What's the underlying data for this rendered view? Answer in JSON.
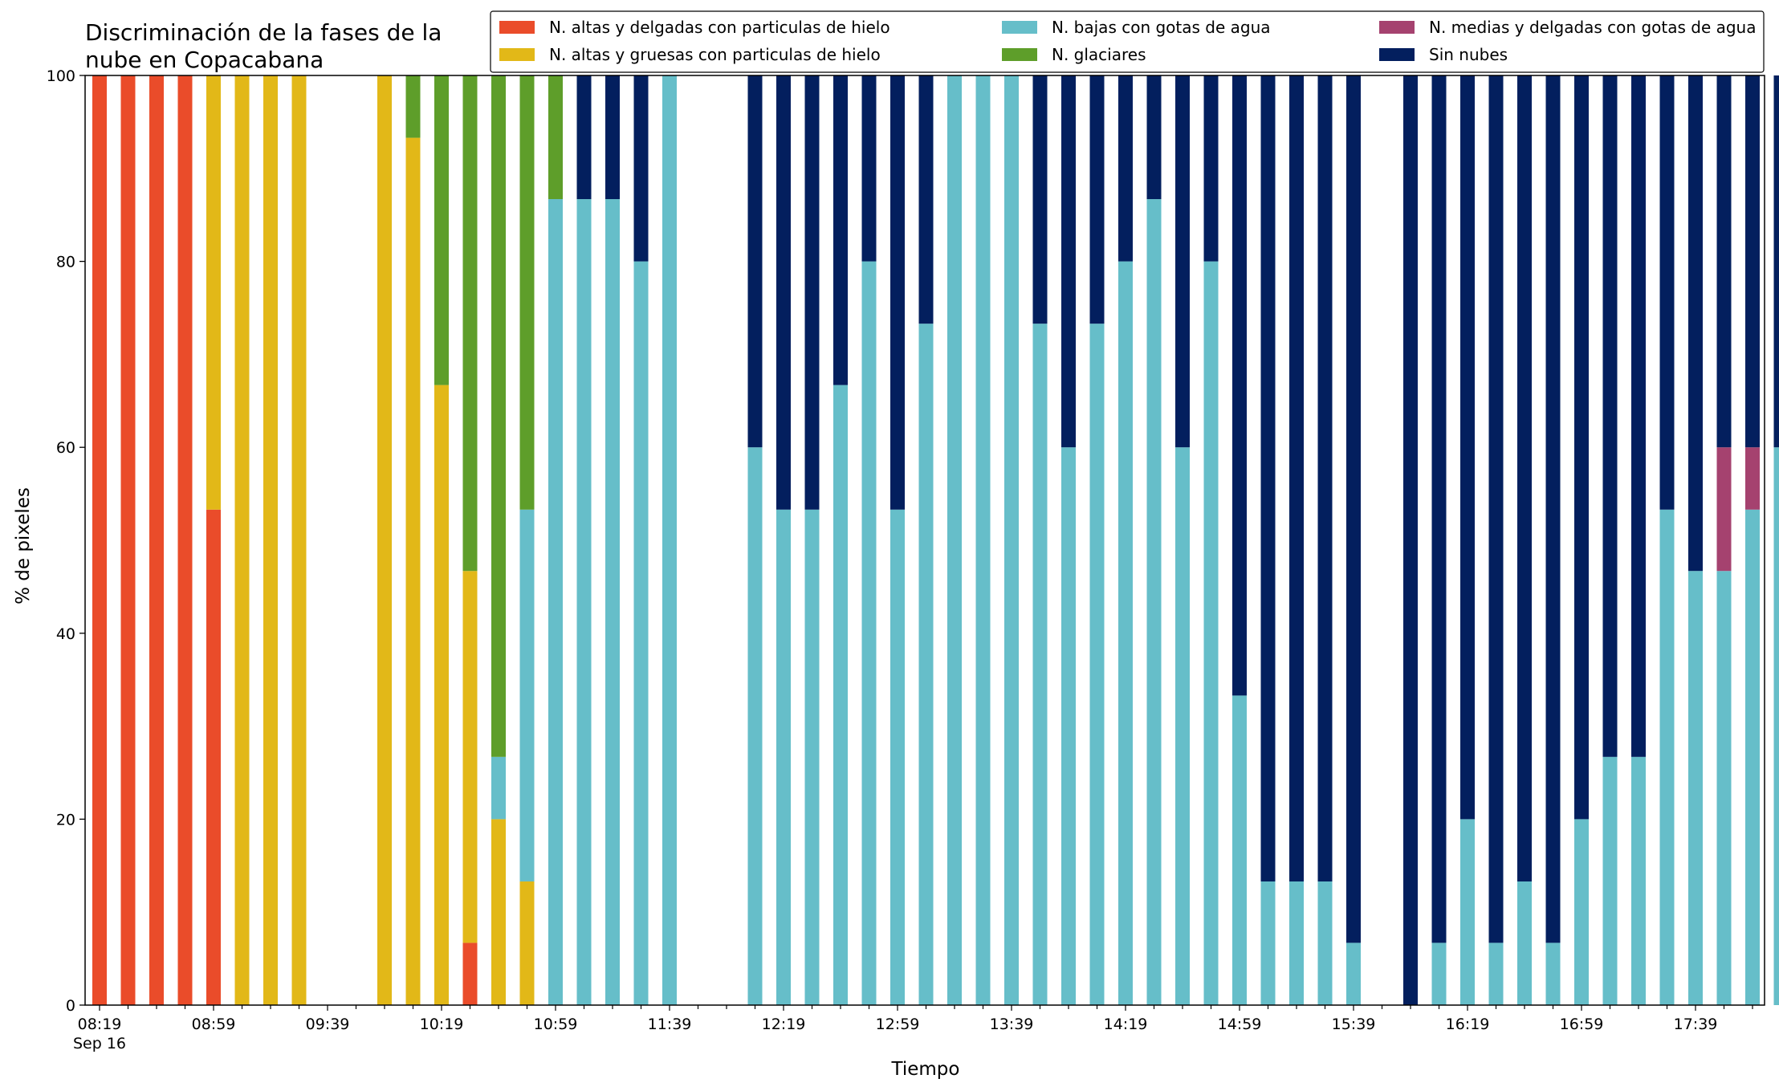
{
  "chart_data": {
    "type": "bar",
    "stacked": true,
    "title_lines": [
      "Discriminación de la fases de la",
      "nube en Copacabana"
    ],
    "xlabel": "Tiempo",
    "ylabel": "% de pixeles",
    "ylim": [
      0,
      100
    ],
    "yticks": [
      0,
      20,
      40,
      60,
      80,
      100
    ],
    "grid": false,
    "legend_position": "top-right",
    "x_start": "08:19",
    "x_step_minutes": 10,
    "slot_count": 59,
    "xtick_labels": [
      "08:19",
      "08:59",
      "09:39",
      "10:19",
      "10:59",
      "11:39",
      "12:19",
      "12:59",
      "13:39",
      "14:19",
      "14:59",
      "15:39",
      "16:19",
      "16:59",
      "17:39"
    ],
    "xtick_sublabel": "Sep 16",
    "series": [
      {
        "name": "N. altas y delgadas con particulas de hielo",
        "color": "#ea4c2a",
        "values": [
          100,
          100,
          100,
          100,
          53.3,
          0,
          0,
          0,
          0,
          0,
          0,
          0,
          0,
          6.7,
          0,
          0,
          0,
          0,
          0,
          0,
          0,
          0,
          0,
          0,
          0,
          0,
          0,
          0,
          0,
          0,
          0,
          0,
          0,
          0,
          0,
          0,
          0,
          0,
          0,
          0,
          0,
          0,
          0,
          0,
          0,
          0,
          0,
          0,
          0,
          0,
          0,
          0,
          0,
          0,
          0,
          0,
          0,
          0,
          0
        ]
      },
      {
        "name": "N. altas y gruesas con particulas de hielo",
        "color": "#e2b818",
        "values": [
          0,
          0,
          0,
          0,
          46.7,
          100,
          100,
          100,
          0,
          0,
          100,
          93.3,
          66.7,
          40,
          20,
          13.3,
          0,
          0,
          0,
          0,
          0,
          0,
          0,
          0,
          0,
          0,
          0,
          0,
          0,
          0,
          0,
          0,
          0,
          0,
          0,
          0,
          0,
          0,
          0,
          0,
          0,
          0,
          0,
          0,
          0,
          0,
          0,
          0,
          0,
          0,
          0,
          0,
          0,
          0,
          0,
          0,
          0,
          0,
          0
        ]
      },
      {
        "name": "N. bajas con gotas de agua",
        "color": "#66bec9",
        "values": [
          0,
          0,
          0,
          0,
          0,
          0,
          0,
          0,
          0,
          0,
          0,
          0,
          0,
          0,
          6.7,
          40,
          86.7,
          86.7,
          86.7,
          80,
          100,
          0,
          0,
          60,
          53.3,
          53.3,
          66.7,
          80,
          53.3,
          73.3,
          100,
          100,
          100,
          73.3,
          60,
          73.3,
          80,
          86.7,
          60,
          80,
          33.3,
          13.3,
          13.3,
          13.3,
          6.7,
          0,
          0,
          6.7,
          20,
          6.7,
          13.3,
          6.7,
          20,
          26.7,
          26.7,
          53.3,
          46.7,
          46.7,
          53.3
        ]
      },
      {
        "name": "N. glaciares",
        "color": "#5e9e2a",
        "values": [
          0,
          0,
          0,
          0,
          0,
          0,
          0,
          0,
          0,
          0,
          0,
          6.7,
          33.3,
          53.3,
          73.3,
          46.7,
          13.3,
          0,
          0,
          0,
          0,
          0,
          0,
          0,
          0,
          0,
          0,
          0,
          0,
          0,
          0,
          0,
          0,
          0,
          0,
          0,
          0,
          0,
          0,
          0,
          0,
          0,
          0,
          0,
          0,
          0,
          0,
          0,
          0,
          0,
          0,
          0,
          0,
          0,
          0,
          0,
          0,
          0,
          0
        ]
      },
      {
        "name": "N. medias y delgadas con gotas de agua",
        "color": "#a5426f",
        "values": [
          0,
          0,
          0,
          0,
          0,
          0,
          0,
          0,
          0,
          0,
          0,
          0,
          0,
          0,
          0,
          0,
          0,
          0,
          0,
          0,
          0,
          0,
          0,
          0,
          0,
          0,
          0,
          0,
          0,
          0,
          0,
          0,
          0,
          0,
          0,
          0,
          0,
          0,
          0,
          0,
          0,
          0,
          0,
          0,
          0,
          0,
          0,
          0,
          0,
          0,
          0,
          0,
          0,
          0,
          0,
          0,
          0,
          13.3,
          6.7
        ]
      },
      {
        "name": "Sin nubes",
        "color": "#031f5e",
        "values": [
          0,
          0,
          0,
          0,
          0,
          0,
          0,
          0,
          0,
          0,
          0,
          0,
          0,
          0,
          0,
          0,
          0,
          13.3,
          13.3,
          20,
          0,
          0,
          0,
          40,
          46.7,
          46.7,
          33.3,
          20,
          46.7,
          26.7,
          0,
          0,
          0,
          26.7,
          40,
          26.7,
          20,
          13.3,
          40,
          20,
          66.7,
          86.7,
          86.7,
          86.7,
          93.3,
          0,
          100,
          93.3,
          80,
          93.3,
          86.7,
          93.3,
          80,
          73.3,
          73.3,
          46.7,
          53.3,
          40,
          40
        ]
      }
    ],
    "legend_order": [
      0,
      1,
      2,
      3,
      4,
      5
    ],
    "extra_last_slot": {
      "x_index": 59,
      "values": [
        0,
        0,
        60,
        0,
        0,
        40
      ]
    }
  }
}
